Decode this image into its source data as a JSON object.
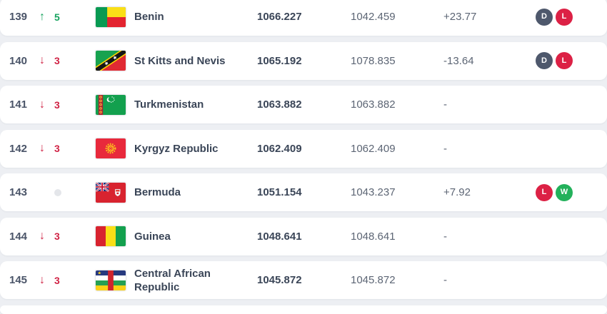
{
  "table": {
    "movement": {
      "up_symbol": "↑",
      "down_symbol": "↓"
    },
    "colors": {
      "up": "#17a35f",
      "down": "#d02345",
      "badge_D": "#4e586c",
      "badge_L": "#dc2145",
      "badge_W": "#23b15b",
      "row_background": "#ffffff",
      "page_background": "#edeff3"
    },
    "rows": [
      {
        "rank": "139",
        "movement": {
          "dir": "up",
          "value": "5"
        },
        "flag": "benin",
        "name": "Benin",
        "points": "1066.227",
        "prev_points": "1042.459",
        "change": "+23.77",
        "badges": [
          "D",
          "L"
        ]
      },
      {
        "rank": "140",
        "movement": {
          "dir": "down",
          "value": "3"
        },
        "flag": "st-kitts-and-nevis",
        "name": "St Kitts and Nevis",
        "points": "1065.192",
        "prev_points": "1078.835",
        "change": "-13.64",
        "badges": [
          "D",
          "L"
        ]
      },
      {
        "rank": "141",
        "movement": {
          "dir": "down",
          "value": "3"
        },
        "flag": "turkmenistan",
        "name": "Turkmenistan",
        "points": "1063.882",
        "prev_points": "1063.882",
        "change": "-",
        "badges": []
      },
      {
        "rank": "142",
        "movement": {
          "dir": "down",
          "value": "3"
        },
        "flag": "kyrgyz-republic",
        "name": "Kyrgyz Republic",
        "points": "1062.409",
        "prev_points": "1062.409",
        "change": "-",
        "badges": []
      },
      {
        "rank": "143",
        "movement": {
          "dir": "none",
          "value": ""
        },
        "flag": "bermuda",
        "name": "Bermuda",
        "points": "1051.154",
        "prev_points": "1043.237",
        "change": "+7.92",
        "badges": [
          "L",
          "W"
        ]
      },
      {
        "rank": "144",
        "movement": {
          "dir": "down",
          "value": "3"
        },
        "flag": "guinea",
        "name": "Guinea",
        "points": "1048.641",
        "prev_points": "1048.641",
        "change": "-",
        "badges": []
      },
      {
        "rank": "145",
        "movement": {
          "dir": "down",
          "value": "3"
        },
        "flag": "central-african-republic",
        "name": "Central African Republic",
        "points": "1045.872",
        "prev_points": "1045.872",
        "change": "-",
        "badges": []
      }
    ]
  }
}
